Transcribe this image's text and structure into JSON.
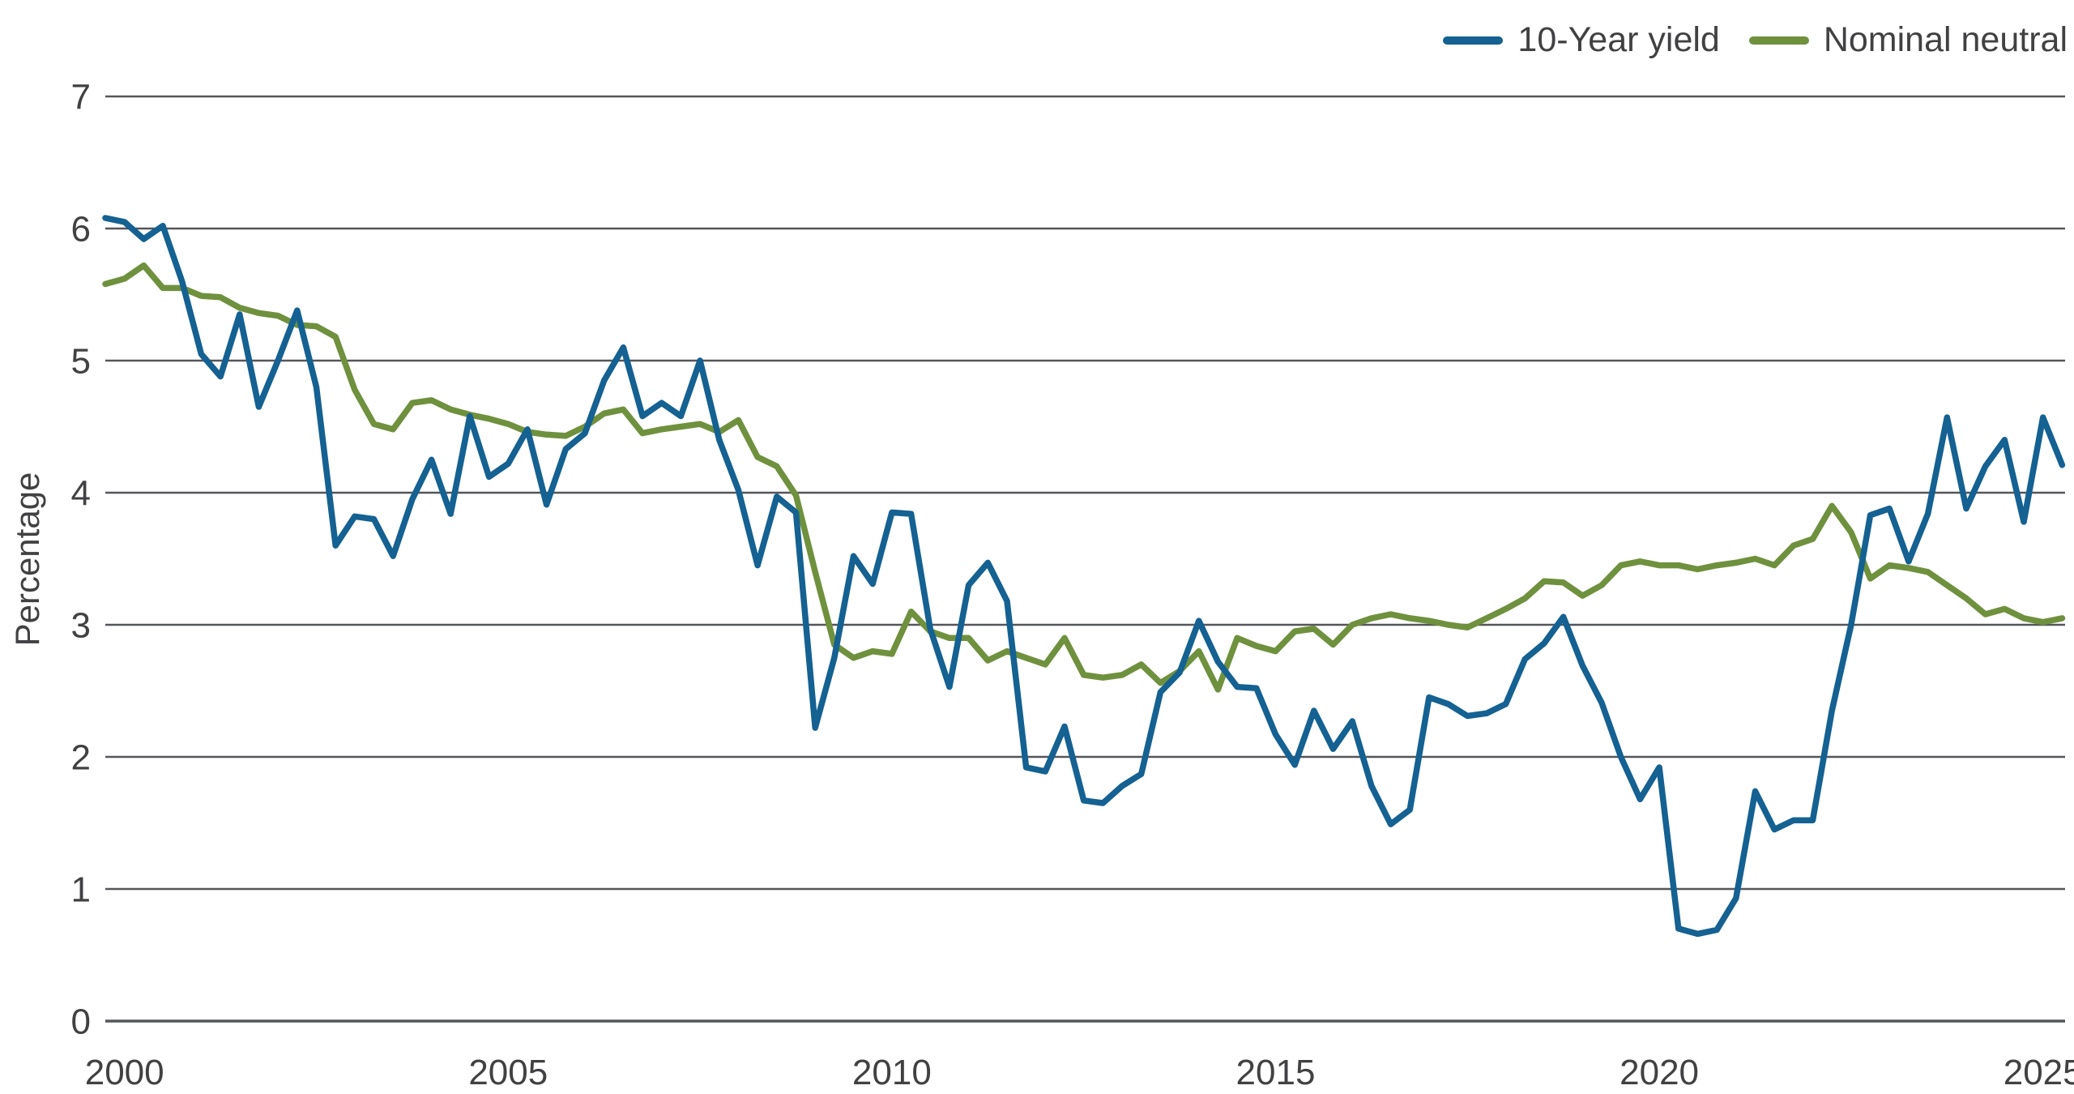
{
  "page": {
    "background": "#ffffff"
  },
  "colors": {
    "grid": "#55565A",
    "axis": "#55565A",
    "text": "#414042",
    "blue_line": "#146192",
    "green_line": "#6F913E"
  },
  "legend": {
    "items": [
      {
        "label": "10-Year yield",
        "color": "#146192"
      },
      {
        "label": "Nominal neutral",
        "color": "#6F913E"
      }
    ]
  },
  "chart_data": {
    "type": "line",
    "title": "",
    "xlabel": "",
    "ylabel": "Percentage",
    "legend_position": "top-right",
    "grid": "horizontal",
    "ylim": [
      0,
      7
    ],
    "xlim": [
      1999.75,
      2025.45
    ],
    "y_ticks": [
      0,
      1,
      2,
      3,
      4,
      5,
      6,
      7
    ],
    "x_ticks": [
      2000,
      2005,
      2010,
      2015,
      2020,
      2025
    ],
    "frequency": "quarterly",
    "x_start": 1999.75,
    "x_step": 0.25,
    "series": [
      {
        "name": "Nominal neutral",
        "color": "#6F913E",
        "values": [
          5.58,
          5.62,
          5.72,
          5.55,
          5.55,
          5.49,
          5.48,
          5.4,
          5.36,
          5.34,
          5.27,
          5.26,
          5.18,
          4.78,
          4.52,
          4.48,
          4.68,
          4.7,
          4.63,
          4.59,
          4.56,
          4.52,
          4.46,
          4.44,
          4.43,
          4.5,
          4.6,
          4.63,
          4.45,
          4.48,
          4.5,
          4.52,
          4.46,
          4.55,
          4.27,
          4.2,
          3.98,
          3.4,
          2.85,
          2.75,
          2.8,
          2.78,
          3.1,
          2.95,
          2.9,
          2.9,
          2.73,
          2.8,
          2.75,
          2.7,
          2.9,
          2.62,
          2.6,
          2.62,
          2.7,
          2.56,
          2.65,
          2.8,
          2.51,
          2.9,
          2.84,
          2.8,
          2.95,
          2.97,
          2.85,
          3.0,
          3.05,
          3.08,
          3.05,
          3.03,
          3.0,
          2.98,
          3.05,
          3.12,
          3.2,
          3.33,
          3.32,
          3.22,
          3.3,
          3.45,
          3.48,
          3.45,
          3.45,
          3.42,
          3.45,
          3.47,
          3.5,
          3.45,
          3.6,
          3.65,
          3.9,
          3.7,
          3.35,
          3.45,
          3.43,
          3.4,
          3.3,
          3.2,
          3.08,
          3.12,
          3.05,
          3.02,
          3.05
        ]
      },
      {
        "name": "10-Year yield",
        "color": "#146192",
        "values": [
          6.08,
          6.05,
          5.92,
          6.02,
          5.6,
          5.05,
          4.88,
          5.35,
          4.65,
          5.0,
          5.38,
          4.8,
          3.6,
          3.82,
          3.8,
          3.52,
          3.95,
          4.25,
          3.84,
          4.58,
          4.12,
          4.22,
          4.48,
          3.91,
          4.33,
          4.45,
          4.85,
          5.1,
          4.58,
          4.68,
          4.58,
          5.0,
          4.4,
          4.02,
          3.45,
          3.97,
          3.85,
          2.22,
          2.75,
          3.52,
          3.31,
          3.85,
          3.84,
          2.97,
          2.53,
          3.3,
          3.47,
          3.18,
          1.92,
          1.89,
          2.23,
          1.67,
          1.65,
          1.78,
          1.87,
          2.49,
          2.64,
          3.03,
          2.72,
          2.53,
          2.52,
          2.17,
          1.94,
          2.35,
          2.06,
          2.27,
          1.78,
          1.49,
          1.6,
          2.45,
          2.4,
          2.31,
          2.33,
          2.4,
          2.74,
          2.86,
          3.06,
          2.69,
          2.41,
          2.0,
          1.68,
          1.92,
          0.7,
          0.66,
          0.69,
          0.93,
          1.74,
          1.45,
          1.52,
          1.52,
          2.35,
          3.0,
          3.83,
          3.88,
          3.48,
          3.84,
          4.57,
          3.88,
          4.2,
          4.4,
          3.78,
          4.57,
          4.21
        ]
      }
    ]
  }
}
